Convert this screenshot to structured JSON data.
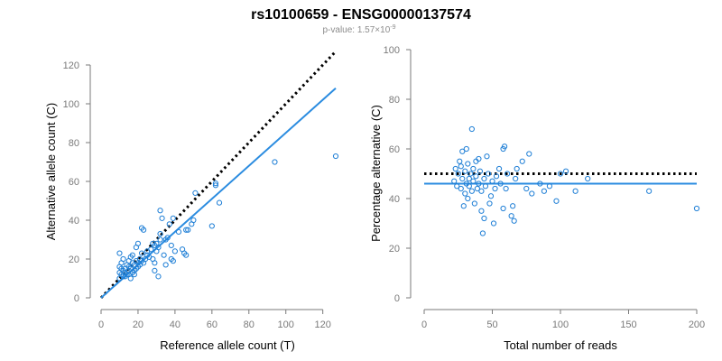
{
  "header": {
    "title": "rs10100659 - ENSG00000137574",
    "pvalue_prefix": "p-value: 1.57×10",
    "pvalue_exponent": "-9"
  },
  "colors": {
    "points": "#1f7fd6",
    "fit_line": "#2b8ce0",
    "reference_line": "#000000",
    "axis": "#7a7a7a"
  },
  "chart_data": [
    {
      "type": "scatter",
      "title": "",
      "xlabel": "Reference allele count (T)",
      "ylabel": "Alternative allele count (C)",
      "xlim": [
        0,
        127
      ],
      "ylim": [
        0,
        120
      ],
      "xticks": [
        "0",
        "20",
        "40",
        "60",
        "80",
        "100",
        "120"
      ],
      "yticks": [
        "0",
        "20",
        "40",
        "60",
        "80",
        "100",
        "120"
      ],
      "points": [
        [
          10,
          10
        ],
        [
          10,
          13
        ],
        [
          10,
          16
        ],
        [
          10,
          23
        ],
        [
          11,
          12
        ],
        [
          11,
          15
        ],
        [
          11,
          18
        ],
        [
          12,
          11
        ],
        [
          12,
          14
        ],
        [
          12,
          20
        ],
        [
          13,
          11
        ],
        [
          13,
          13
        ],
        [
          13,
          15
        ],
        [
          14,
          12
        ],
        [
          14,
          17
        ],
        [
          15,
          12
        ],
        [
          15,
          14
        ],
        [
          15,
          16
        ],
        [
          15,
          19
        ],
        [
          16,
          10
        ],
        [
          16,
          15
        ],
        [
          16,
          21
        ],
        [
          17,
          13
        ],
        [
          17,
          18
        ],
        [
          17,
          22
        ],
        [
          18,
          12
        ],
        [
          18,
          14
        ],
        [
          18,
          17
        ],
        [
          19,
          15
        ],
        [
          19,
          19
        ],
        [
          19,
          26
        ],
        [
          20,
          16
        ],
        [
          20,
          18
        ],
        [
          20,
          28
        ],
        [
          21,
          17
        ],
        [
          21,
          20
        ],
        [
          22,
          19
        ],
        [
          22,
          23
        ],
        [
          22,
          36
        ],
        [
          23,
          35
        ],
        [
          23,
          18
        ],
        [
          24,
          20
        ],
        [
          25,
          22
        ],
        [
          25,
          24
        ],
        [
          26,
          21
        ],
        [
          27,
          25
        ],
        [
          28,
          20
        ],
        [
          28,
          28
        ],
        [
          29,
          14
        ],
        [
          29,
          18
        ],
        [
          29,
          27
        ],
        [
          30,
          24
        ],
        [
          30,
          28
        ],
        [
          31,
          11
        ],
        [
          31,
          26
        ],
        [
          32,
          33
        ],
        [
          32,
          30
        ],
        [
          32,
          45
        ],
        [
          33,
          41
        ],
        [
          34,
          22
        ],
        [
          35,
          17
        ],
        [
          35,
          30
        ],
        [
          36,
          31
        ],
        [
          37,
          38
        ],
        [
          38,
          20
        ],
        [
          38,
          27
        ],
        [
          39,
          19
        ],
        [
          39,
          41
        ],
        [
          40,
          24
        ],
        [
          42,
          34
        ],
        [
          44,
          25
        ],
        [
          45,
          23
        ],
        [
          46,
          22
        ],
        [
          46,
          35
        ],
        [
          47,
          35
        ],
        [
          49,
          38
        ],
        [
          50,
          40
        ],
        [
          51,
          54
        ],
        [
          60,
          37
        ],
        [
          62,
          58
        ],
        [
          62,
          59
        ],
        [
          64,
          49
        ],
        [
          94,
          70
        ],
        [
          127,
          73
        ]
      ],
      "reference_line": {
        "style": "dotted",
        "from": [
          0,
          0
        ],
        "to": [
          127,
          127
        ]
      },
      "fit_line": {
        "style": "solid",
        "from": [
          0,
          0
        ],
        "to": [
          127,
          108
        ]
      }
    },
    {
      "type": "scatter",
      "title": "",
      "xlabel": "Total number of reads",
      "ylabel": "Percentage alternative (C)",
      "xlim": [
        0,
        200
      ],
      "ylim": [
        0,
        100
      ],
      "xticks": [
        "0",
        "50",
        "100",
        "150",
        "200"
      ],
      "yticks": [
        "0",
        "20",
        "40",
        "60",
        "80",
        "100"
      ],
      "points": [
        [
          22,
          47
        ],
        [
          23,
          52
        ],
        [
          24,
          45
        ],
        [
          25,
          50
        ],
        [
          26,
          55
        ],
        [
          27,
          44
        ],
        [
          27,
          53
        ],
        [
          28,
          48
        ],
        [
          28,
          59
        ],
        [
          29,
          37
        ],
        [
          30,
          42
        ],
        [
          30,
          51
        ],
        [
          31,
          46
        ],
        [
          31,
          60
        ],
        [
          32,
          40
        ],
        [
          32,
          54
        ],
        [
          33,
          48
        ],
        [
          33,
          45
        ],
        [
          34,
          50
        ],
        [
          35,
          68
        ],
        [
          35,
          43
        ],
        [
          36,
          47
        ],
        [
          36,
          52
        ],
        [
          37,
          38
        ],
        [
          38,
          49
        ],
        [
          38,
          55
        ],
        [
          39,
          44
        ],
        [
          40,
          56
        ],
        [
          40,
          46
        ],
        [
          41,
          51
        ],
        [
          42,
          35
        ],
        [
          42,
          43
        ],
        [
          43,
          26
        ],
        [
          44,
          32
        ],
        [
          44,
          48
        ],
        [
          45,
          45
        ],
        [
          46,
          57
        ],
        [
          47,
          50
        ],
        [
          48,
          38
        ],
        [
          49,
          41
        ],
        [
          50,
          47
        ],
        [
          51,
          30
        ],
        [
          52,
          44
        ],
        [
          53,
          49
        ],
        [
          55,
          52
        ],
        [
          56,
          46
        ],
        [
          58,
          36
        ],
        [
          58,
          60
        ],
        [
          59,
          61
        ],
        [
          60,
          44
        ],
        [
          61,
          50
        ],
        [
          64,
          33
        ],
        [
          65,
          37
        ],
        [
          66,
          31
        ],
        [
          67,
          48
        ],
        [
          68,
          52
        ],
        [
          72,
          55
        ],
        [
          75,
          44
        ],
        [
          77,
          58
        ],
        [
          79,
          42
        ],
        [
          85,
          46
        ],
        [
          88,
          43
        ],
        [
          92,
          45
        ],
        [
          97,
          39
        ],
        [
          100,
          50
        ],
        [
          104,
          51
        ],
        [
          111,
          43
        ],
        [
          120,
          48
        ],
        [
          165,
          43
        ],
        [
          200,
          36
        ]
      ],
      "reference_line": {
        "style": "dotted",
        "y": 50
      },
      "fit_line": {
        "style": "solid",
        "y": 46
      }
    }
  ]
}
